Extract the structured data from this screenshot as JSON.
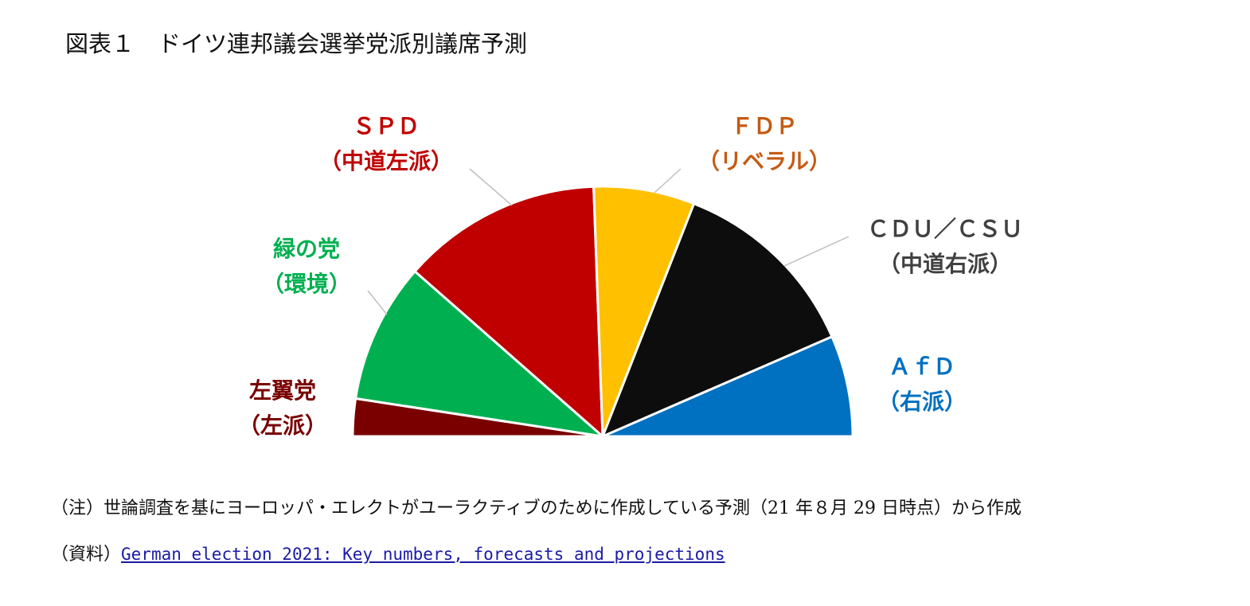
{
  "title": "図表１　ドイツ連邦議会選挙党派別議席予測",
  "chart_data": {
    "type": "pie",
    "subtype": "half-donut (parliament semicircle)",
    "slices": [
      {
        "label": "左翼党",
        "sublabel": "（左派）",
        "value": 4.6,
        "color": "#7a0000"
      },
      {
        "label": "緑の党",
        "sublabel": "（環境）",
        "value": 17.2,
        "color": "#00b050"
      },
      {
        "label": "ＳＰＤ",
        "sublabel": "（中道左派）",
        "value": 24.6,
        "color": "#c00000"
      },
      {
        "label": "ＦＤＰ",
        "sublabel": "（リベラル）",
        "value": 12.4,
        "color": "#ffc000"
      },
      {
        "label": "ＣＤＵ／ＣＳＵ",
        "sublabel": "（中道右派）",
        "value": 23.8,
        "color": "#0d0d0d"
      },
      {
        "label": "ＡｆＤ",
        "sublabel": "（右派）",
        "value": 12.4,
        "color": "#0070c0"
      }
    ],
    "label_colors": {
      "左翼党": "#7a0000",
      "緑の党": "#00b050",
      "ＳＰＤ": "#c00000",
      "ＦＤＰ": "#c55a11",
      "ＣＤＵ／ＣＳＵ": "#404040",
      "ＡｆＤ": "#0070c0"
    },
    "leader_line_color": "#bfbfbf"
  },
  "note": "（注）世論調査を基にヨーロッパ・エレクトがユーラクティブのために作成している予測（21 年８月 29 日時点）から作成",
  "source_prefix": "（資料）",
  "source_link": "German election 2021: Key numbers, forecasts and projections"
}
